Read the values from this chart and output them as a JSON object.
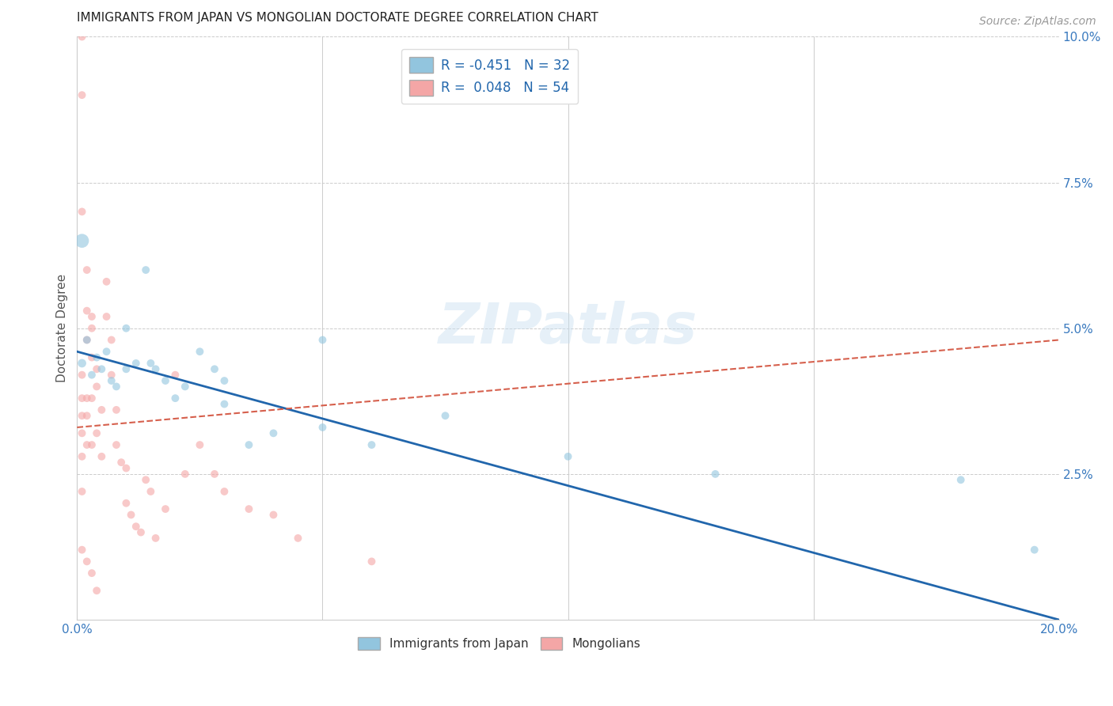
{
  "title": "IMMIGRANTS FROM JAPAN VS MONGOLIAN DOCTORATE DEGREE CORRELATION CHART",
  "source": "Source: ZipAtlas.com",
  "ylabel": "Doctorate Degree",
  "watermark": "ZIPatlas",
  "xlim": [
    0.0,
    0.2
  ],
  "ylim": [
    0.0,
    0.1
  ],
  "xticks": [
    0.0,
    0.05,
    0.1,
    0.15,
    0.2
  ],
  "xticklabels": [
    "0.0%",
    "",
    "",
    "",
    "20.0%"
  ],
  "ytick_positions": [
    0.025,
    0.05,
    0.075,
    0.1
  ],
  "ytick_labels": [
    "2.5%",
    "5.0%",
    "7.5%",
    "10.0%"
  ],
  "legend_blue_label": "R = -0.451   N = 32",
  "legend_pink_label": "R =  0.048   N = 54",
  "legend_bottom_blue": "Immigrants from Japan",
  "legend_bottom_pink": "Mongolians",
  "blue_color": "#92c5de",
  "pink_color": "#f4a6a6",
  "blue_line_color": "#2166ac",
  "pink_line_color": "#d6604d",
  "japan_x": [
    0.001,
    0.001,
    0.002,
    0.003,
    0.004,
    0.005,
    0.006,
    0.007,
    0.008,
    0.01,
    0.01,
    0.012,
    0.014,
    0.015,
    0.016,
    0.018,
    0.02,
    0.022,
    0.025,
    0.028,
    0.03,
    0.03,
    0.035,
    0.04,
    0.05,
    0.06,
    0.075,
    0.1,
    0.13,
    0.18,
    0.05,
    0.195
  ],
  "japan_y": [
    0.065,
    0.044,
    0.048,
    0.042,
    0.045,
    0.043,
    0.046,
    0.041,
    0.04,
    0.05,
    0.043,
    0.044,
    0.06,
    0.044,
    0.043,
    0.041,
    0.038,
    0.04,
    0.046,
    0.043,
    0.037,
    0.041,
    0.03,
    0.032,
    0.033,
    0.03,
    0.035,
    0.028,
    0.025,
    0.024,
    0.048,
    0.012
  ],
  "japan_sizes": [
    160,
    60,
    50,
    50,
    50,
    50,
    50,
    50,
    50,
    50,
    50,
    50,
    50,
    50,
    50,
    50,
    50,
    50,
    50,
    50,
    50,
    50,
    50,
    50,
    50,
    50,
    50,
    50,
    50,
    50,
    50,
    50
  ],
  "mongolia_x": [
    0.001,
    0.001,
    0.001,
    0.001,
    0.001,
    0.001,
    0.001,
    0.001,
    0.001,
    0.002,
    0.002,
    0.002,
    0.002,
    0.002,
    0.002,
    0.003,
    0.003,
    0.003,
    0.003,
    0.003,
    0.004,
    0.004,
    0.004,
    0.005,
    0.005,
    0.006,
    0.006,
    0.007,
    0.007,
    0.008,
    0.008,
    0.009,
    0.01,
    0.01,
    0.011,
    0.012,
    0.013,
    0.014,
    0.015,
    0.016,
    0.018,
    0.02,
    0.022,
    0.025,
    0.028,
    0.03,
    0.035,
    0.04,
    0.045,
    0.06,
    0.001,
    0.002,
    0.003,
    0.004
  ],
  "mongolia_y": [
    0.1,
    0.09,
    0.07,
    0.042,
    0.038,
    0.035,
    0.032,
    0.028,
    0.022,
    0.06,
    0.053,
    0.048,
    0.038,
    0.035,
    0.03,
    0.052,
    0.05,
    0.045,
    0.038,
    0.03,
    0.043,
    0.04,
    0.032,
    0.036,
    0.028,
    0.058,
    0.052,
    0.048,
    0.042,
    0.036,
    0.03,
    0.027,
    0.026,
    0.02,
    0.018,
    0.016,
    0.015,
    0.024,
    0.022,
    0.014,
    0.019,
    0.042,
    0.025,
    0.03,
    0.025,
    0.022,
    0.019,
    0.018,
    0.014,
    0.01,
    0.012,
    0.01,
    0.008,
    0.005
  ],
  "mongolia_sizes": [
    50,
    50,
    50,
    50,
    50,
    50,
    50,
    50,
    50,
    50,
    50,
    50,
    50,
    50,
    50,
    50,
    50,
    50,
    50,
    50,
    50,
    50,
    50,
    50,
    50,
    50,
    50,
    50,
    50,
    50,
    50,
    50,
    50,
    50,
    50,
    50,
    50,
    50,
    50,
    50,
    50,
    50,
    50,
    50,
    50,
    50,
    50,
    50,
    50,
    50,
    50,
    50,
    50,
    50
  ],
  "japan_trend_x": [
    0.0,
    0.2
  ],
  "japan_trend_y": [
    0.046,
    0.0
  ],
  "mongolia_trend_x": [
    0.0,
    0.2
  ],
  "mongolia_trend_y": [
    0.033,
    0.048
  ],
  "background_color": "#ffffff",
  "grid_color": "#cccccc",
  "title_fontsize": 11,
  "axis_label_fontsize": 11,
  "tick_fontsize": 11,
  "source_fontsize": 10
}
